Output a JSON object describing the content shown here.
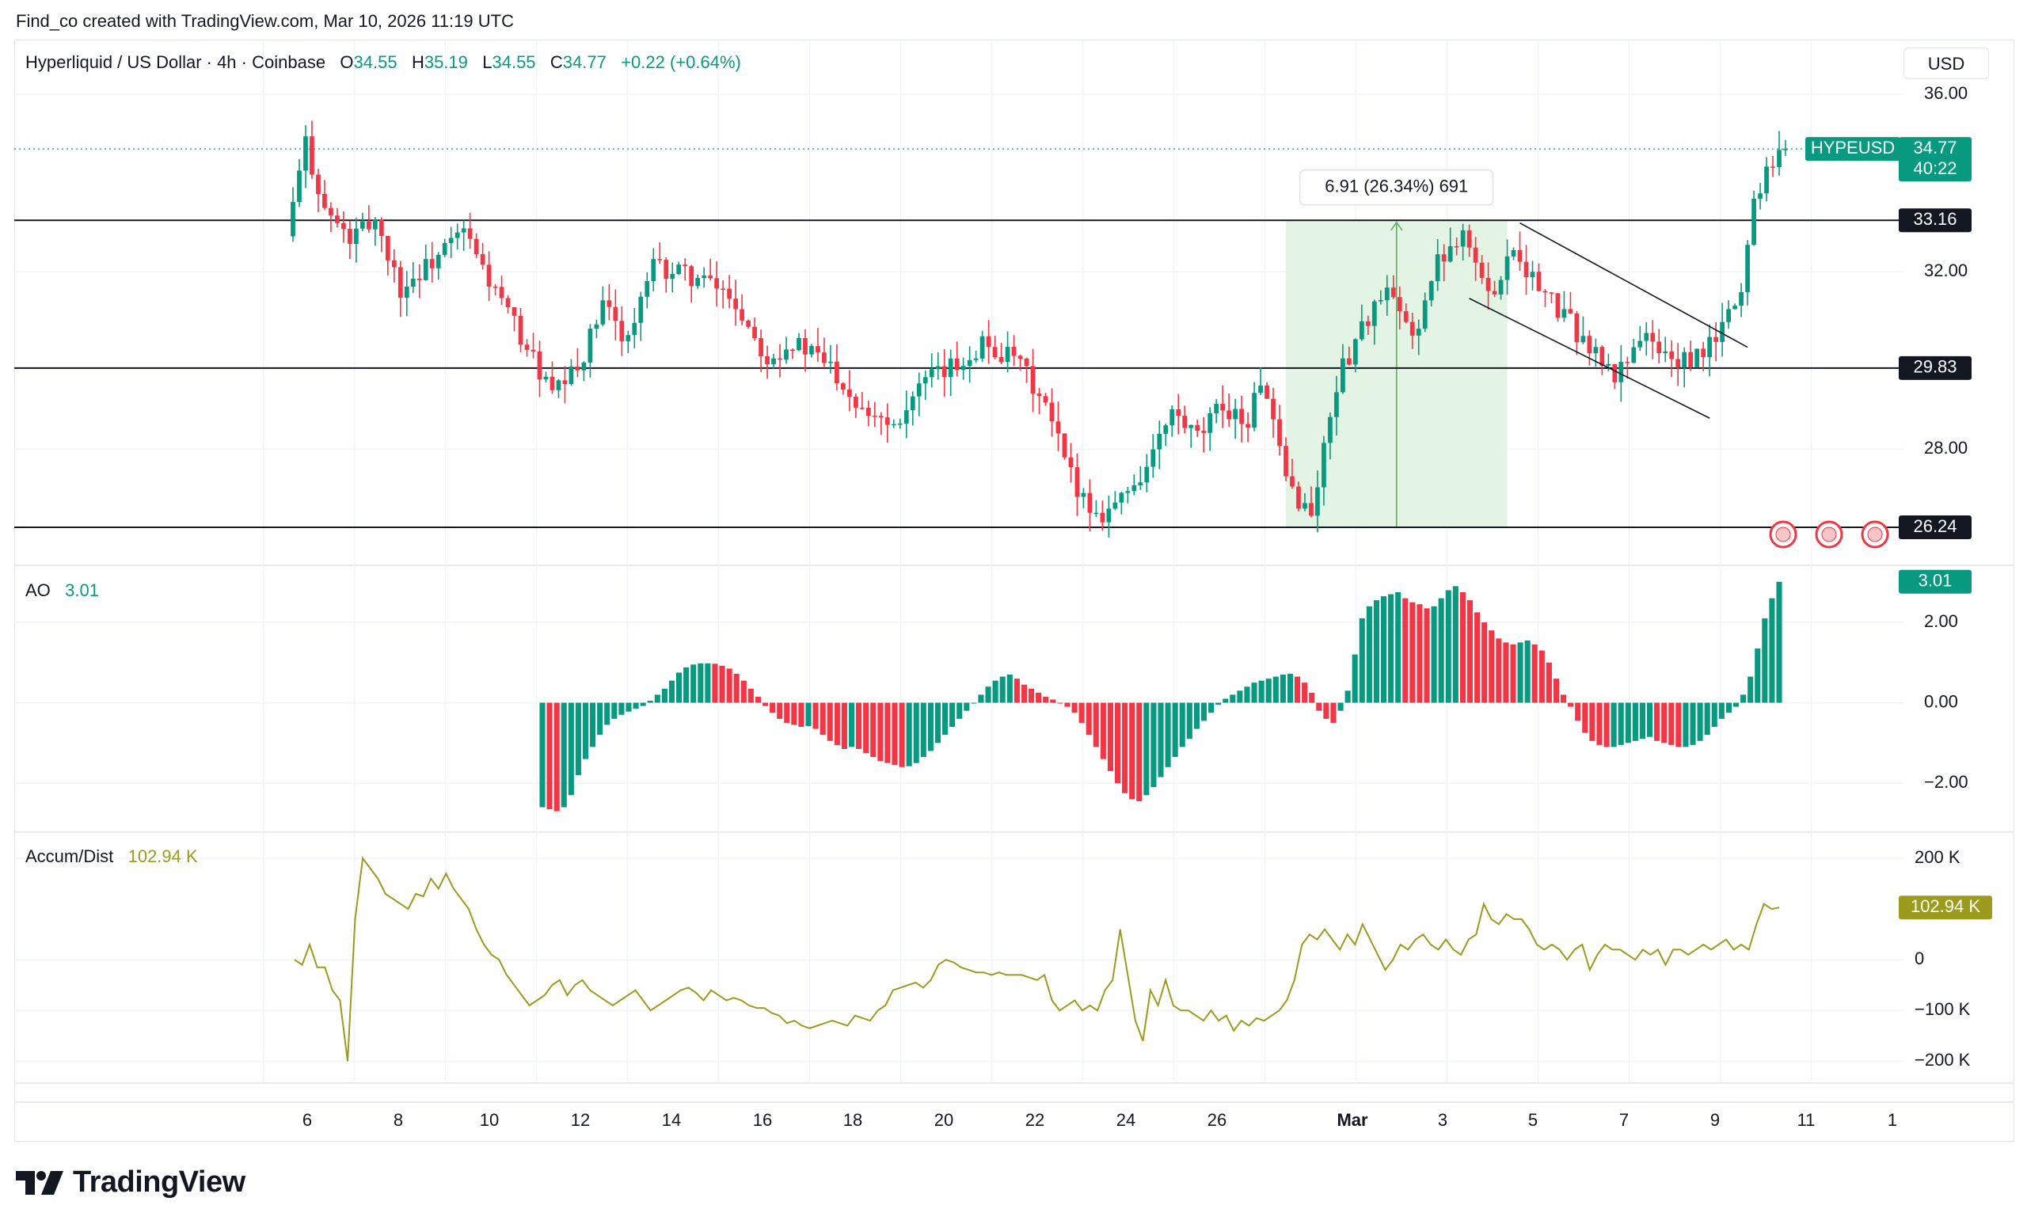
{
  "header": {
    "credit": "Find_co created with TradingView.com, Mar 10, 2026 11:19 UTC",
    "currency": "USD",
    "brand": "TradingView"
  },
  "legend": {
    "symbol": "Hyperliquid / US Dollar · 4h · Coinbase",
    "o_label": "O",
    "o": "34.55",
    "h_label": "H",
    "h": "35.19",
    "l_label": "L",
    "l": "34.55",
    "c_label": "C",
    "c": "34.77",
    "change": "+0.22 (+0.64%)"
  },
  "ao_legend": {
    "name": "AO",
    "value": "3.01"
  },
  "ad_legend": {
    "name": "Accum/Dist",
    "value": "102.94 K"
  },
  "colors": {
    "up": "#089981",
    "down": "#f23645",
    "ad_line": "#9b9b1d",
    "measure_fill": "#e3f3e4",
    "grid": "#f0f3fa"
  },
  "chart_data": [
    {
      "type": "candlestick",
      "name": "HYPEUSD",
      "timeframe": "4h",
      "y_axis_ticks": [
        "36.00",
        "32.00",
        "28.00"
      ],
      "ylim": [
        25.4,
        37.2
      ],
      "x_ticks": [
        "6",
        "8",
        "10",
        "12",
        "14",
        "16",
        "18",
        "20",
        "22",
        "24",
        "26",
        "Mar",
        "3",
        "5",
        "7",
        "9",
        "11",
        "1"
      ],
      "last_price": {
        "symbol": "HYPEUSD",
        "value": "34.77",
        "countdown": "40:22"
      },
      "horizontal_levels": [
        {
          "value": 33.16,
          "label": "33.16"
        },
        {
          "value": 29.83,
          "label": "29.83"
        },
        {
          "value": 26.24,
          "label": "26.24"
        }
      ],
      "measure": {
        "label": "6.91 (26.34%) 691",
        "from": 26.24,
        "to": 33.15
      },
      "channel": "descending channel, Mar 4 – Mar 9",
      "ohlc": []
    },
    {
      "type": "bar",
      "name": "AO",
      "value": "3.01",
      "y_axis_ticks": [
        "2.00",
        "0.00",
        "−2.00"
      ],
      "ylim": [
        -3.2,
        3.4
      ],
      "values": [
        -2.6,
        -2.65,
        -2.7,
        -2.6,
        -2.3,
        -1.8,
        -1.4,
        -1.1,
        -0.8,
        -0.55,
        -0.4,
        -0.3,
        -0.22,
        -0.15,
        -0.08,
        0.05,
        0.2,
        0.35,
        0.55,
        0.75,
        0.88,
        0.95,
        0.98,
        0.98,
        0.97,
        0.92,
        0.85,
        0.72,
        0.55,
        0.35,
        0.15,
        -0.08,
        -0.25,
        -0.4,
        -0.5,
        -0.55,
        -0.6,
        -0.58,
        -0.65,
        -0.8,
        -0.95,
        -1.05,
        -1.15,
        -1.1,
        -1.15,
        -1.25,
        -1.35,
        -1.45,
        -1.5,
        -1.55,
        -1.6,
        -1.58,
        -1.5,
        -1.35,
        -1.2,
        -1.0,
        -0.8,
        -0.6,
        -0.4,
        -0.2,
        0.0,
        0.2,
        0.4,
        0.55,
        0.65,
        0.7,
        0.6,
        0.45,
        0.35,
        0.25,
        0.15,
        0.08,
        0.0,
        -0.1,
        -0.25,
        -0.5,
        -0.8,
        -1.1,
        -1.4,
        -1.7,
        -2.0,
        -2.25,
        -2.4,
        -2.45,
        -2.3,
        -2.1,
        -1.85,
        -1.6,
        -1.35,
        -1.1,
        -0.9,
        -0.65,
        -0.45,
        -0.25,
        -0.05,
        0.1,
        0.2,
        0.3,
        0.4,
        0.5,
        0.55,
        0.6,
        0.65,
        0.7,
        0.72,
        0.65,
        0.5,
        0.25,
        -0.2,
        -0.4,
        -0.5,
        -0.2,
        0.3,
        1.2,
        2.1,
        2.4,
        2.55,
        2.65,
        2.7,
        2.75,
        2.6,
        2.5,
        2.45,
        2.35,
        2.4,
        2.6,
        2.8,
        2.9,
        2.75,
        2.55,
        2.25,
        2.0,
        1.8,
        1.6,
        1.5,
        1.45,
        1.5,
        1.55,
        1.45,
        1.3,
        1.0,
        0.6,
        0.2,
        -0.1,
        -0.45,
        -0.75,
        -0.95,
        -1.05,
        -1.1,
        -1.1,
        -1.05,
        -1.0,
        -0.95,
        -0.9,
        -0.85,
        -0.95,
        -1.0,
        -1.05,
        -1.1,
        -1.1,
        -1.05,
        -0.95,
        -0.8,
        -0.6,
        -0.4,
        -0.25,
        -0.1,
        0.2,
        0.65,
        1.35,
        2.1,
        2.6,
        3.01
      ]
    },
    {
      "type": "line",
      "name": "Accum/Dist",
      "value": "102.94 K",
      "y_axis_ticks": [
        "200 K",
        "0",
        "−100 K",
        "−200 K"
      ],
      "ylim": [
        -240,
        250
      ],
      "values": [
        0,
        -10,
        30,
        -15,
        -15,
        -60,
        -80,
        -200,
        80,
        200,
        180,
        160,
        130,
        120,
        110,
        100,
        130,
        125,
        160,
        140,
        170,
        140,
        120,
        100,
        60,
        30,
        10,
        0,
        -30,
        -50,
        -70,
        -90,
        -80,
        -70,
        -50,
        -40,
        -70,
        -50,
        -40,
        -60,
        -70,
        -80,
        -90,
        -80,
        -70,
        -60,
        -80,
        -100,
        -90,
        -80,
        -70,
        -60,
        -55,
        -65,
        -80,
        -60,
        -70,
        -80,
        -75,
        -80,
        -90,
        -95,
        -95,
        -105,
        -110,
        -125,
        -120,
        -130,
        -135,
        -130,
        -125,
        -120,
        -125,
        -130,
        -110,
        -115,
        -120,
        -100,
        -90,
        -60,
        -55,
        -50,
        -45,
        -55,
        -40,
        -10,
        0,
        -5,
        -15,
        -20,
        -25,
        -25,
        -30,
        -25,
        -30,
        -30,
        -30,
        -35,
        -40,
        -30,
        -80,
        -100,
        -90,
        -80,
        -100,
        -90,
        -100,
        -60,
        -40,
        60,
        -30,
        -120,
        -160,
        -60,
        -90,
        -40,
        -90,
        -100,
        -100,
        -110,
        -120,
        -100,
        -120,
        -110,
        -140,
        -120,
        -130,
        -115,
        -120,
        -110,
        -100,
        -80,
        -40,
        30,
        50,
        40,
        60,
        40,
        20,
        50,
        30,
        70,
        40,
        10,
        -20,
        0,
        30,
        20,
        40,
        50,
        30,
        20,
        40,
        20,
        10,
        40,
        50,
        110,
        80,
        70,
        90,
        80,
        80,
        60,
        30,
        20,
        30,
        20,
        0,
        20,
        30,
        -20,
        10,
        30,
        20,
        20,
        10,
        0,
        20,
        10,
        20,
        -10,
        20,
        20,
        10,
        20,
        30,
        20,
        30,
        40,
        20,
        30,
        20,
        70,
        110,
        100,
        102.94
      ]
    }
  ]
}
